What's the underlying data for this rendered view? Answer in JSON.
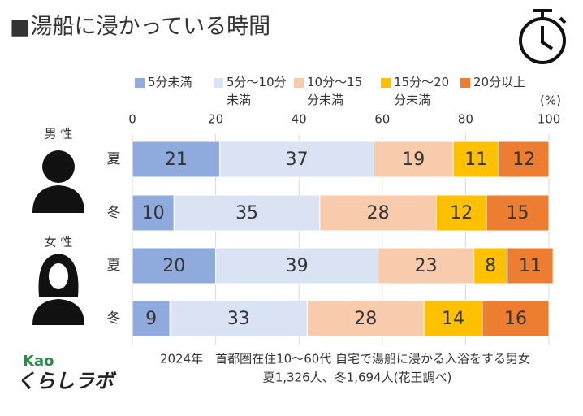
{
  "chart_data": {
    "type": "stacked-barh",
    "title": "■湯船に浸かっている時間",
    "unit_label": "(%)",
    "categories": [
      "夏",
      "冬",
      "夏",
      "冬"
    ],
    "groups": [
      "男 性",
      "女 性"
    ],
    "series": [
      {
        "name": "5分未満",
        "color": "#8faadc",
        "values": [
          21,
          10,
          20,
          9
        ]
      },
      {
        "name": "5分～10分未満",
        "color": "#dae3f3",
        "values": [
          37,
          35,
          39,
          33
        ]
      },
      {
        "name": "10分～15分未満",
        "color": "#f8cbad",
        "values": [
          19,
          28,
          23,
          28
        ]
      },
      {
        "name": "15分～20分未満",
        "color": "#ffc000",
        "values": [
          11,
          12,
          8,
          14
        ]
      },
      {
        "name": "20分以上",
        "color": "#ed7d31",
        "values": [
          12,
          15,
          11,
          16
        ]
      }
    ],
    "xlim": [
      0,
      100
    ],
    "xticks": [
      0,
      20,
      40,
      60,
      80,
      100
    ],
    "grid": true,
    "notes": [
      "2024年　首都圏在住10～60代 自宅で湯船に浸かる入浴をする男女",
      "夏1,326人、冬1,694人(花王調べ)"
    ],
    "brand": [
      "Kao",
      "くらしラボ"
    ]
  }
}
